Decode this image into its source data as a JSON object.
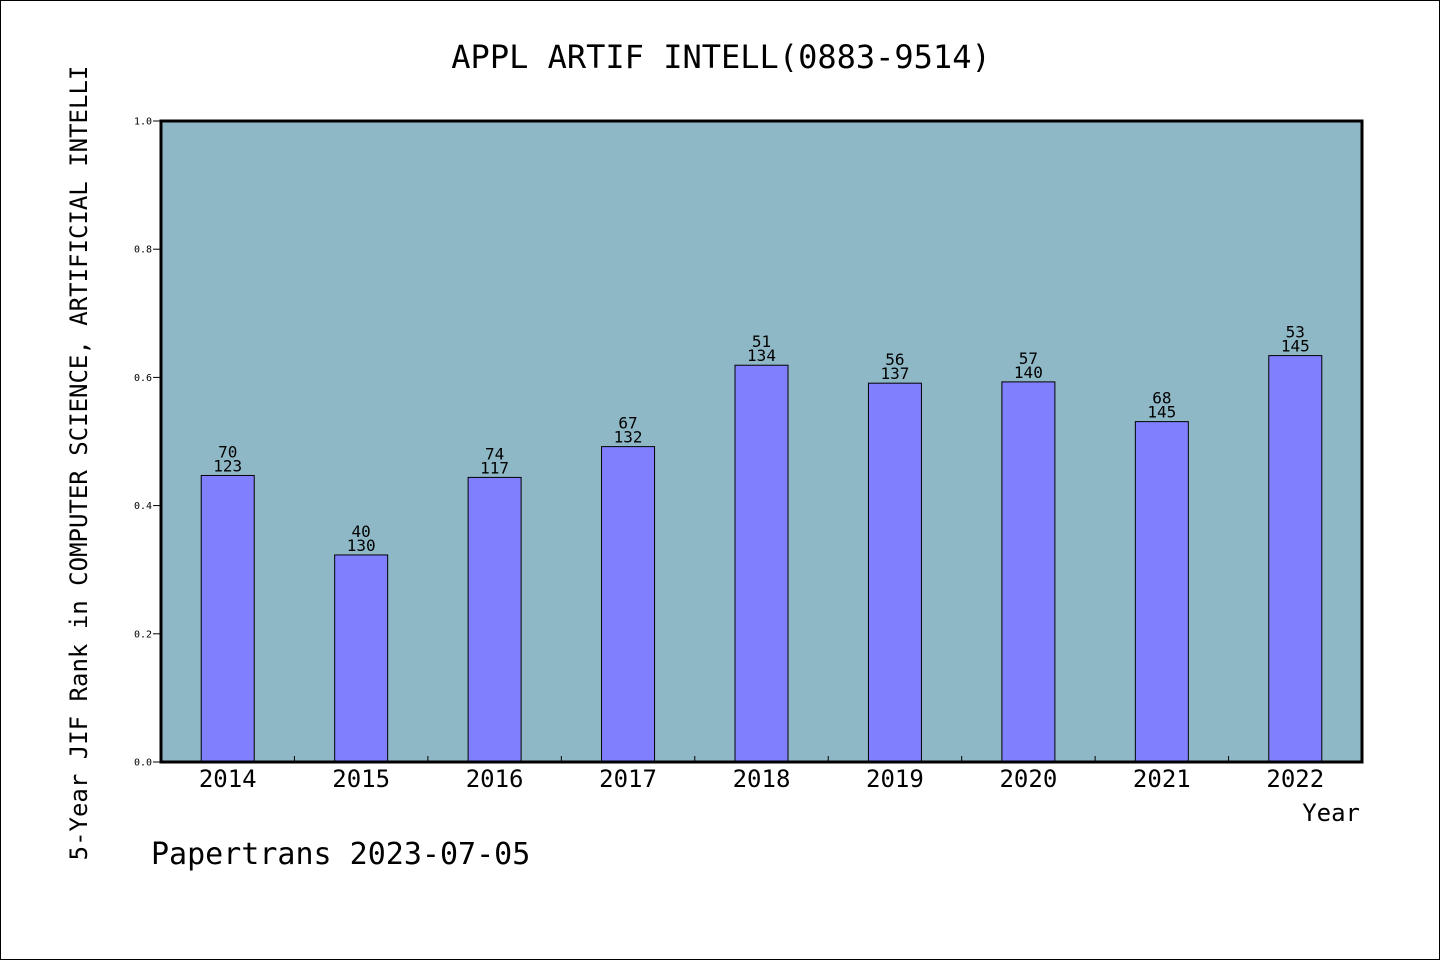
{
  "chart_data": {
    "type": "bar",
    "title": "APPL ARTIF INTELL(0883-9514)",
    "xlabel": "Year",
    "ylabel": "5-Year JIF Rank in COMPUTER SCIENCE, ARTIFICIAL INTELLI",
    "ylim": [
      0,
      1.0
    ],
    "yticks": [
      "0.0",
      "0.2",
      "0.4",
      "0.6",
      "0.8",
      "1.0"
    ],
    "categories": [
      "2014",
      "2015",
      "2016",
      "2017",
      "2018",
      "2019",
      "2020",
      "2021",
      "2022"
    ],
    "values": [
      0.447,
      0.323,
      0.444,
      0.492,
      0.619,
      0.591,
      0.593,
      0.531,
      0.634
    ],
    "ranks": [
      "70",
      "40",
      "74",
      "67",
      "51",
      "56",
      "57",
      "68",
      "53"
    ],
    "totals": [
      "123",
      "130",
      "117",
      "132",
      "134",
      "137",
      "140",
      "145",
      "145"
    ],
    "grid": false,
    "plot_background": "#8fb8c7",
    "bar_color": "#8080ff"
  },
  "footer": "Papertrans 2023-07-05"
}
